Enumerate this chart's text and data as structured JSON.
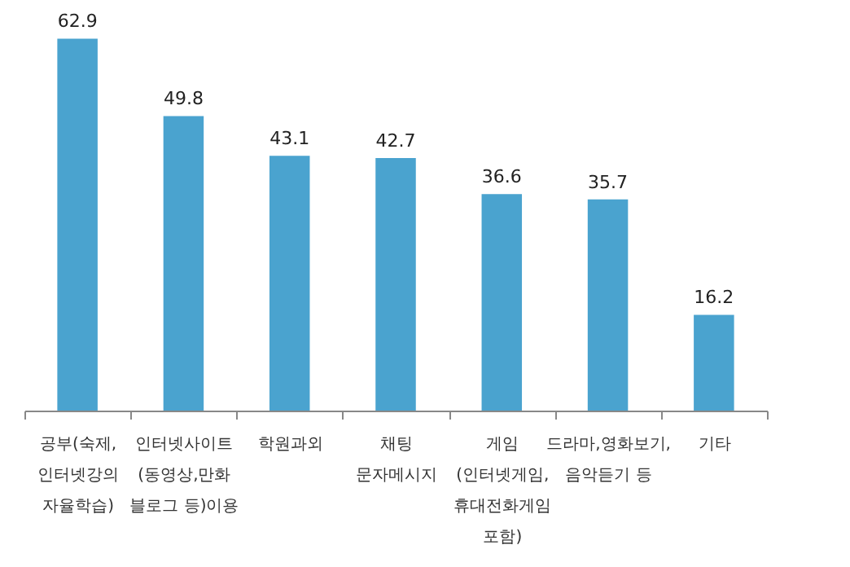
{
  "chart_data": {
    "type": "bar",
    "categories": [
      "공부(숙제,\n인터넷강의\n자율학습)",
      "인터넷사이트\n(동영상,만화\n블로그 등)이용",
      "학원과외",
      "채팅\n문자메시지",
      "게임\n(인터넷게임,\n휴대전화게임\n포함)",
      "드라마,영화보기,\n음악듣기 등",
      "기타"
    ],
    "values": [
      62.9,
      49.8,
      43.1,
      42.7,
      36.6,
      35.7,
      16.2
    ],
    "color": "#4aa3cf",
    "data_labels": true,
    "grid": false
  }
}
